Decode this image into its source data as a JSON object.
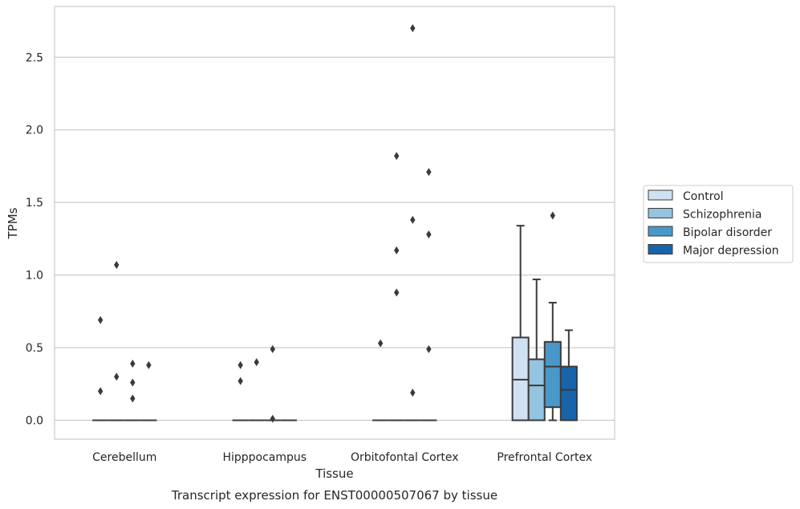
{
  "chart_data": {
    "type": "box",
    "caption": "Transcript expression for ENST00000507067 by tissue",
    "xlabel": "Tissue",
    "ylabel": "TPMs",
    "ylim": [
      -0.13,
      2.85
    ],
    "yticks": [
      "0.0",
      "0.5",
      "1.0",
      "1.5",
      "2.0",
      "2.5"
    ],
    "ytick_values": [
      0.0,
      0.5,
      1.0,
      1.5,
      2.0,
      2.5
    ],
    "grid": true,
    "legend_position": "right",
    "categories": [
      "Cerebellum",
      "Hipppocampus",
      "Orbitofontal Cortex",
      "Prefrontal Cortex"
    ],
    "series": [
      {
        "name": "Control",
        "color": "#d0e1f2",
        "boxes": [
          {
            "whislo": 0,
            "q1": 0,
            "med": 0,
            "q3": 0,
            "whishi": 0,
            "fliers": [
              0.69,
              0.2
            ]
          },
          {
            "whislo": 0,
            "q1": 0,
            "med": 0,
            "q3": 0,
            "whishi": 0,
            "fliers": [
              0.38,
              0.27
            ]
          },
          {
            "whislo": 0,
            "q1": 0,
            "med": 0,
            "q3": 0,
            "whishi": 0,
            "fliers": [
              0.53
            ]
          },
          {
            "whislo": 0,
            "q1": 0,
            "med": 0.28,
            "q3": 0.57,
            "whishi": 1.34,
            "fliers": []
          }
        ]
      },
      {
        "name": "Schizophrenia",
        "color": "#94c4df",
        "boxes": [
          {
            "whislo": 0,
            "q1": 0,
            "med": 0,
            "q3": 0,
            "whishi": 0,
            "fliers": [
              1.07,
              0.3
            ]
          },
          {
            "whislo": 0,
            "q1": 0,
            "med": 0,
            "q3": 0,
            "whishi": 0,
            "fliers": [
              0.4
            ]
          },
          {
            "whislo": 0,
            "q1": 0,
            "med": 0,
            "q3": 0,
            "whishi": 0,
            "fliers": [
              1.82,
              1.17,
              0.88
            ]
          },
          {
            "whislo": 0,
            "q1": 0,
            "med": 0.24,
            "q3": 0.42,
            "whishi": 0.97,
            "fliers": []
          }
        ]
      },
      {
        "name": "Bipolar disorder",
        "color": "#4a98c9",
        "boxes": [
          {
            "whislo": 0,
            "q1": 0,
            "med": 0,
            "q3": 0,
            "whishi": 0,
            "fliers": [
              0.39,
              0.26,
              0.15
            ]
          },
          {
            "whislo": 0,
            "q1": 0,
            "med": 0,
            "q3": 0,
            "whishi": 0,
            "fliers": [
              0.49,
              0.01
            ]
          },
          {
            "whislo": 0,
            "q1": 0,
            "med": 0,
            "q3": 0,
            "whishi": 0,
            "fliers": [
              2.7,
              1.38,
              0.19
            ]
          },
          {
            "whislo": 0,
            "q1": 0.09,
            "med": 0.37,
            "q3": 0.54,
            "whishi": 0.81,
            "fliers": [
              1.41
            ]
          }
        ]
      },
      {
        "name": "Major depression",
        "color": "#1764ab",
        "boxes": [
          {
            "whislo": 0,
            "q1": 0,
            "med": 0,
            "q3": 0,
            "whishi": 0,
            "fliers": [
              0.38
            ]
          },
          {
            "whislo": 0,
            "q1": 0,
            "med": 0,
            "q3": 0,
            "whishi": 0,
            "fliers": []
          },
          {
            "whislo": 0,
            "q1": 0,
            "med": 0,
            "q3": 0,
            "whishi": 0,
            "fliers": [
              1.71,
              1.28,
              0.49
            ]
          },
          {
            "whislo": 0,
            "q1": 0,
            "med": 0.21,
            "q3": 0.37,
            "whishi": 0.62,
            "fliers": []
          }
        ]
      }
    ]
  }
}
